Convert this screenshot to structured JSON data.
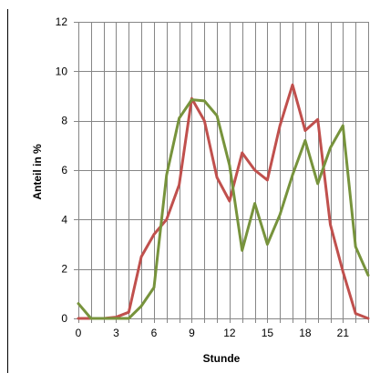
{
  "chart_data": {
    "type": "line",
    "xlabel": "Stunde",
    "ylabel": "Anteil in %",
    "xlim": [
      0,
      23
    ],
    "ylim": [
      0,
      12
    ],
    "x_ticks": [
      0,
      3,
      6,
      9,
      12,
      15,
      18,
      21
    ],
    "y_ticks": [
      0,
      2,
      4,
      6,
      8,
      10,
      12
    ],
    "grid": true,
    "legend": "none",
    "x": [
      0,
      1,
      2,
      3,
      4,
      5,
      6,
      7,
      8,
      9,
      10,
      11,
      12,
      13,
      14,
      15,
      16,
      17,
      18,
      19,
      20,
      21,
      22,
      23
    ],
    "series": [
      {
        "color": "#c0504d",
        "values": [
          0.0,
          0.0,
          0.0,
          0.05,
          0.25,
          2.5,
          3.4,
          4.0,
          5.4,
          8.9,
          8.0,
          5.7,
          4.75,
          6.7,
          6.0,
          5.6,
          7.8,
          9.45,
          7.6,
          8.05,
          3.8,
          1.9,
          0.2,
          0.0
        ]
      },
      {
        "color": "#77933c",
        "values": [
          0.6,
          0.0,
          0.0,
          0.0,
          0.0,
          0.5,
          1.25,
          5.8,
          8.1,
          8.85,
          8.8,
          8.2,
          6.2,
          2.75,
          4.65,
          3.0,
          4.2,
          5.8,
          7.2,
          5.45,
          6.9,
          7.8,
          2.9,
          1.75
        ]
      }
    ]
  }
}
